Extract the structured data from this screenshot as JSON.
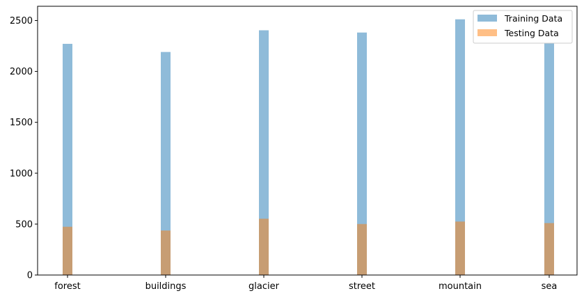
{
  "chart_data": {
    "type": "bar",
    "categories": [
      "forest",
      "buildings",
      "glacier",
      "street",
      "mountain",
      "sea"
    ],
    "series": [
      {
        "name": "Training Data",
        "color": "#1f77b4",
        "opacity": 0.5,
        "values": [
          2271,
          2191,
          2404,
          2382,
          2512,
          2274
        ]
      },
      {
        "name": "Testing Data",
        "color": "#ff7f0e",
        "opacity": 0.5,
        "values": [
          474,
          437,
          553,
          501,
          525,
          510
        ]
      }
    ],
    "ylim": [
      0,
      2640
    ],
    "yticks": [
      0,
      500,
      1000,
      1500,
      2000,
      2500
    ],
    "xlabel": "",
    "ylabel": "",
    "title": "",
    "grid": false,
    "legend": "top-right"
  }
}
